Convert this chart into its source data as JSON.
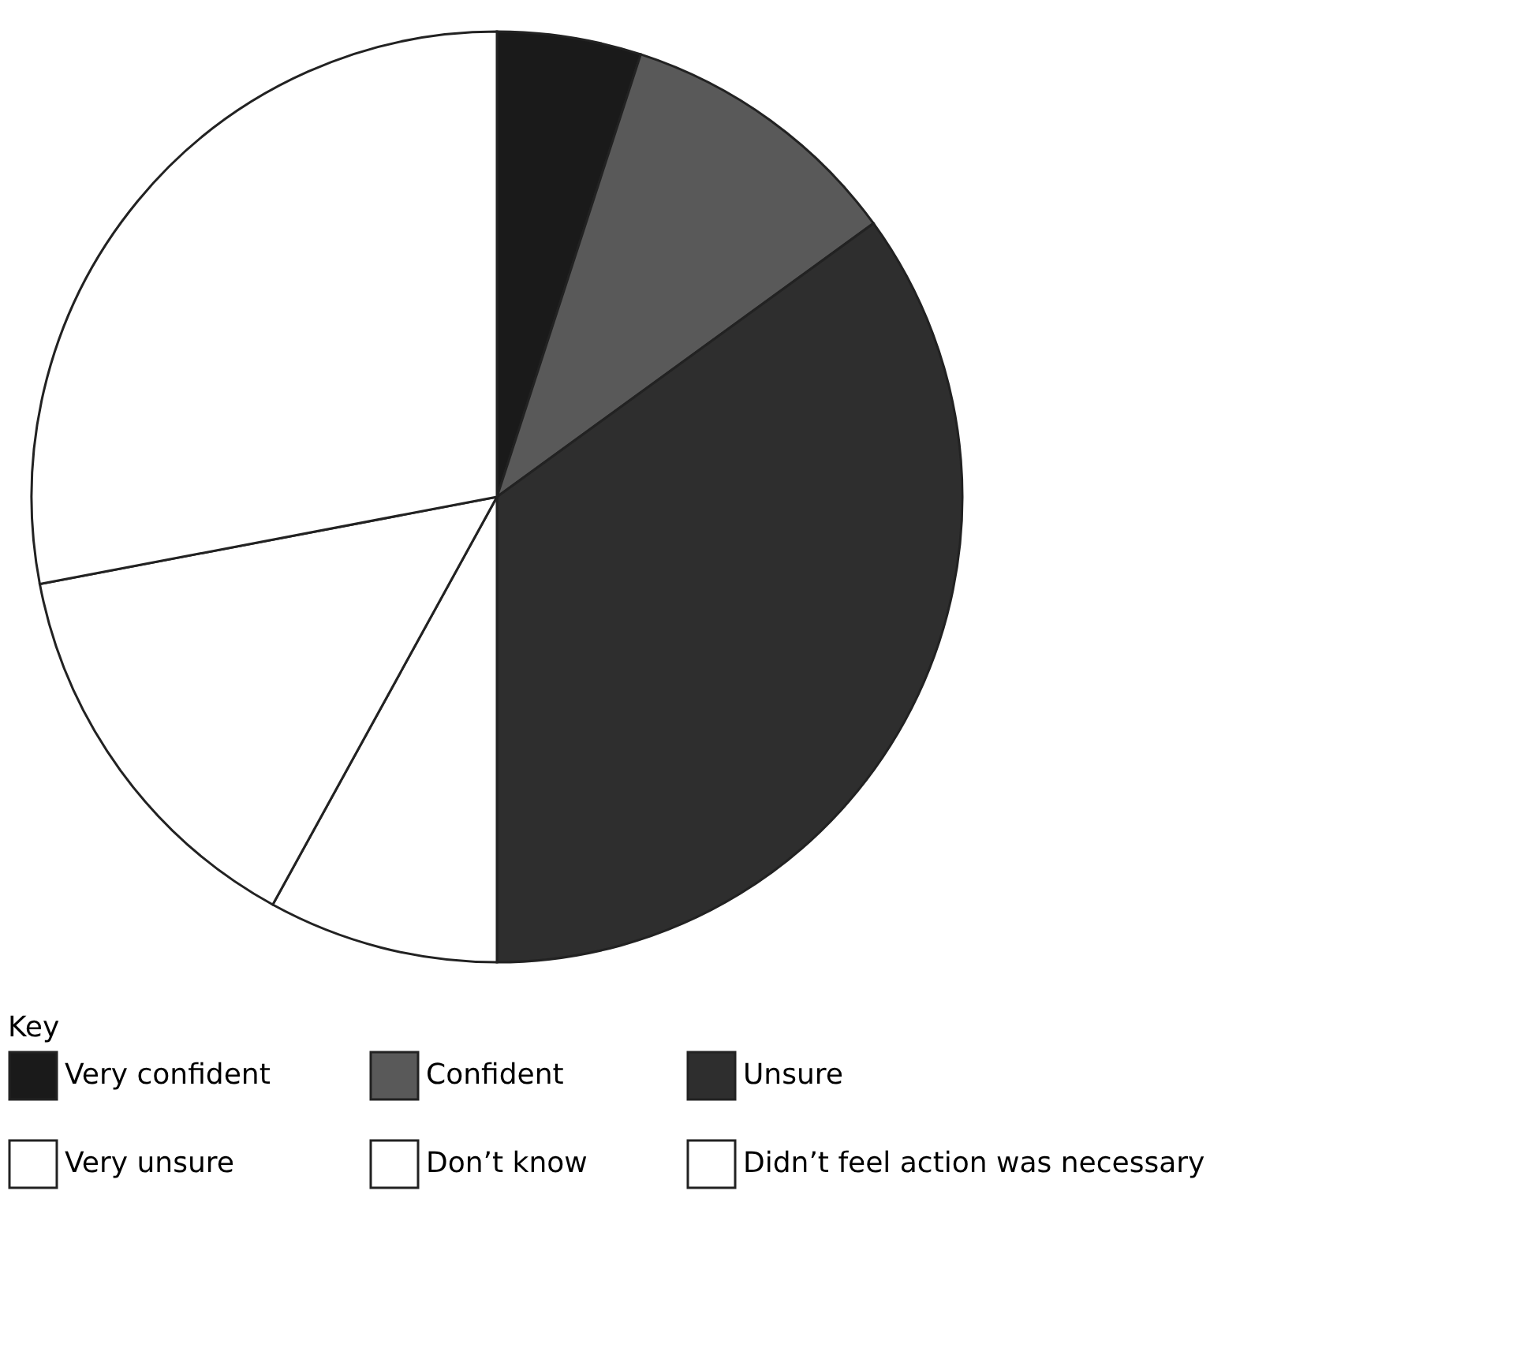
{
  "chart_data": {
    "type": "pie",
    "legend_title": "Key",
    "categories": [
      "Very confident",
      "Confident",
      "Unsure",
      "Very unsure",
      "Don’t know",
      "Didn’t feel action was necessary"
    ],
    "values": [
      5,
      10,
      35,
      8,
      14,
      28
    ],
    "colors": [
      "#1a1a1a",
      "#595959",
      "#2e2e2e",
      "#ffffff",
      "#ffffff",
      "#ffffff"
    ],
    "legend": "bottom"
  }
}
